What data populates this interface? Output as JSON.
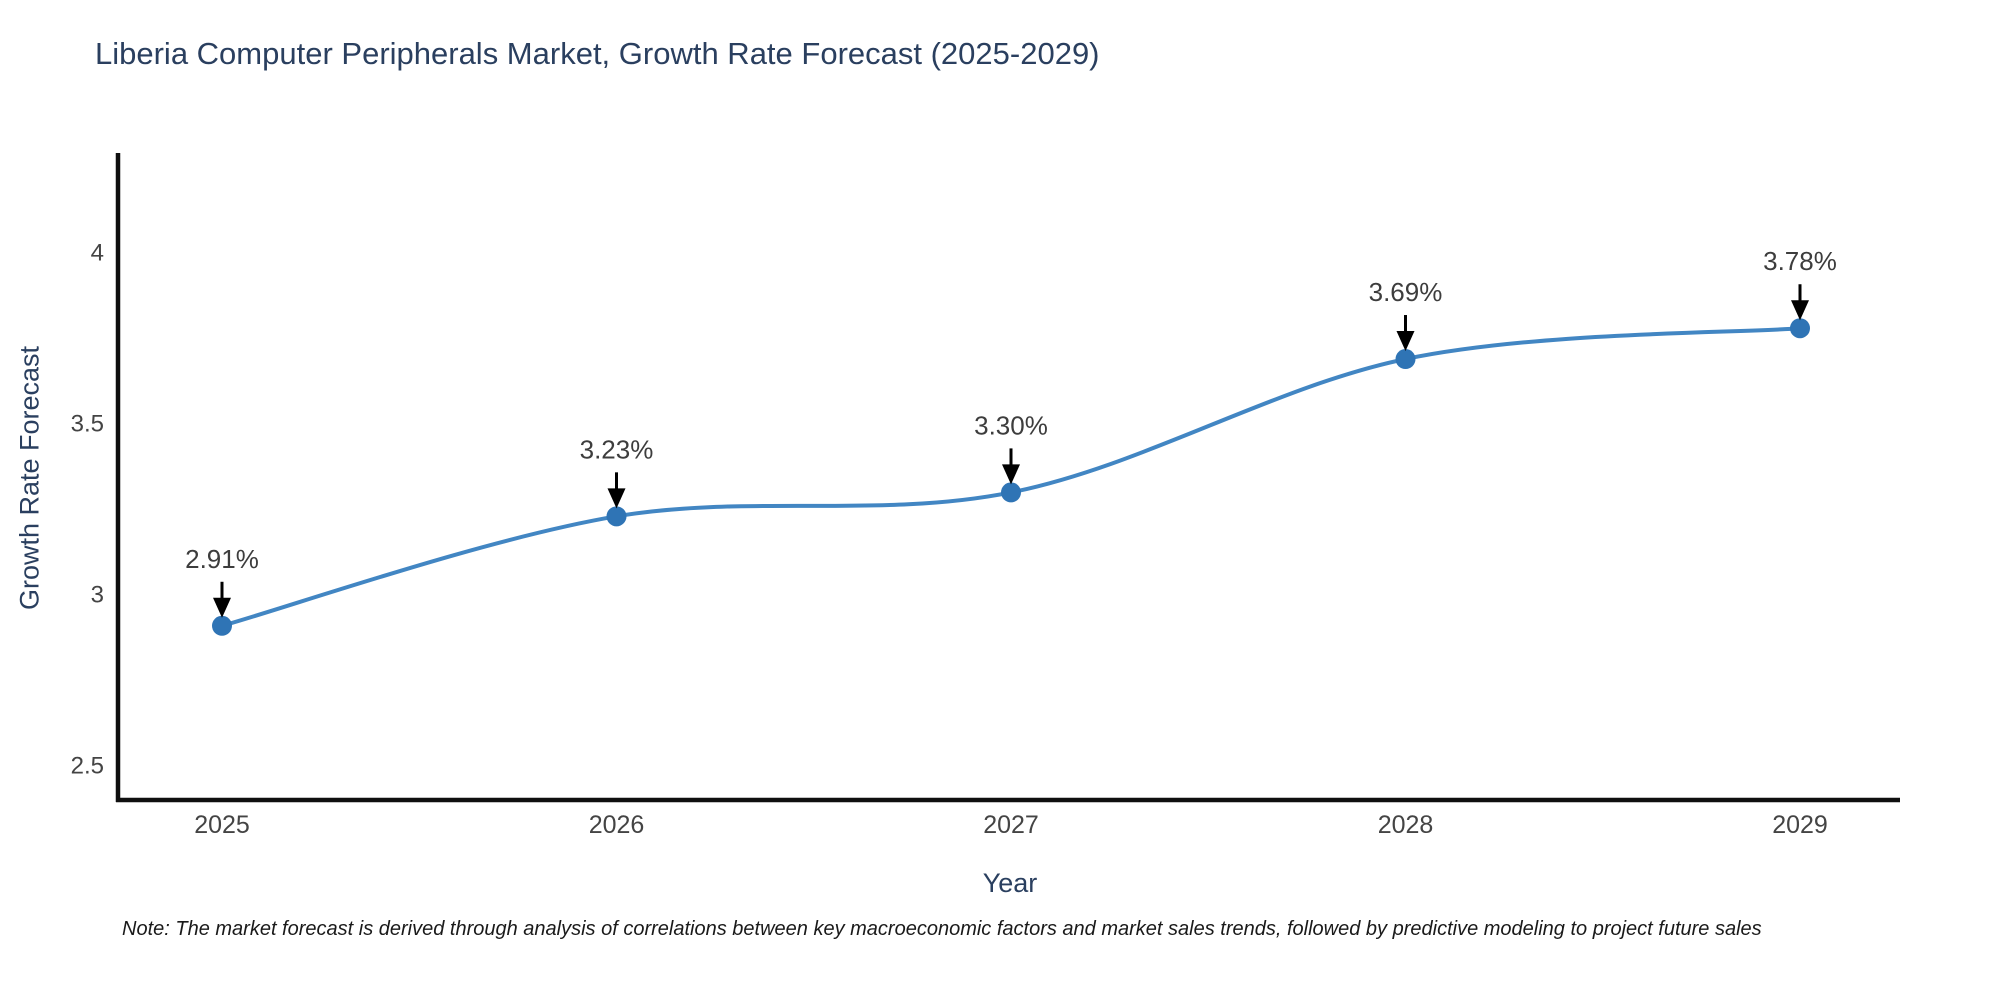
{
  "chart_data": {
    "type": "line",
    "title": "Liberia Computer Peripherals Market, Growth Rate Forecast (2025-2029)",
    "xlabel": "Year",
    "ylabel": "Growth Rate Forecast",
    "categories": [
      "2025",
      "2026",
      "2027",
      "2028",
      "2029"
    ],
    "x": [
      2025,
      2026,
      2027,
      2028,
      2029
    ],
    "values": [
      2.91,
      3.23,
      3.3,
      3.69,
      3.78
    ],
    "point_labels": [
      "2.91%",
      "3.23%",
      "3.30%",
      "3.69%",
      "3.78%"
    ],
    "ytick_values": [
      4,
      3.5,
      3,
      2.5
    ],
    "ytick_labels": [
      "4",
      "3.5",
      "3",
      "2.5"
    ],
    "ylim": [
      2.4,
      4.3
    ],
    "line_shape": "spline",
    "grid": false,
    "legend": "none",
    "annotations_style": "down-arrow-to-point",
    "colors": {
      "line": "#4286c3",
      "marker": "#2f74b5",
      "arrow": "#000000",
      "axis_line": "#0f0f0f",
      "tick_text": "#444444",
      "annotation_text": "#3d3d3d",
      "title_text": "#2a3f5f"
    }
  },
  "note": "Note: The market forecast is derived through analysis of correlations between key macroeconomic factors and market sales trends, followed by predictive modeling to project future sales"
}
